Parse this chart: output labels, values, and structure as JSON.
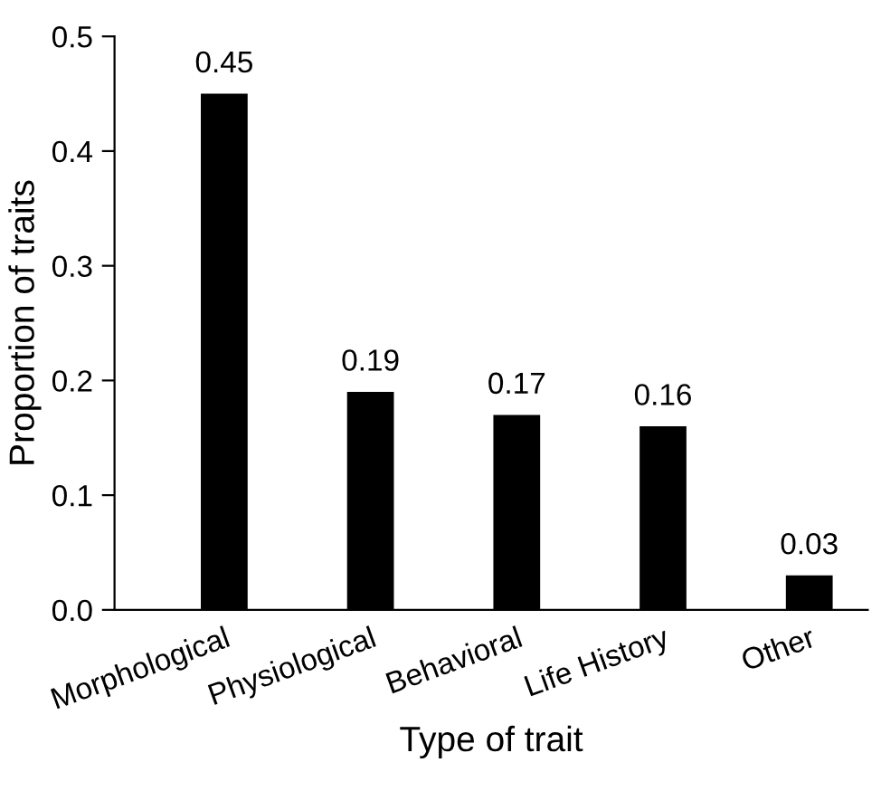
{
  "chart_data": {
    "type": "bar",
    "xlabel": "Type of trait",
    "ylabel": "Proportion of traits",
    "categories": [
      "Morphological",
      "Physiological",
      "Behavioral",
      "Life History",
      "Other"
    ],
    "values": [
      0.45,
      0.19,
      0.17,
      0.16,
      0.03
    ],
    "color": "#000000",
    "ylim": [
      0,
      0.5
    ],
    "yticks": [
      {
        "value": 0,
        "label": "0.0"
      },
      {
        "value": 0.1,
        "label": "0.1"
      },
      {
        "value": 0.2,
        "label": "0.2"
      },
      {
        "value": 0.3,
        "label": "0.3"
      },
      {
        "value": 0.4,
        "label": "0.4"
      },
      {
        "value": 0.5,
        "label": "0.5"
      }
    ],
    "data_labels": true,
    "grid": false,
    "legend": false
  }
}
